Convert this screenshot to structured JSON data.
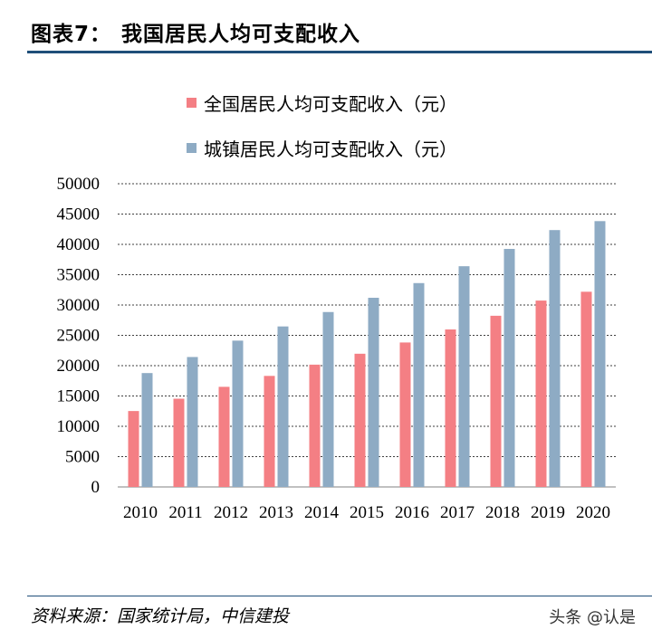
{
  "header": {
    "figure_number": "图表7：",
    "title": "我国居民人均可支配收入"
  },
  "chart_data": {
    "type": "bar",
    "title": "",
    "categories": [
      "2010",
      "2011",
      "2012",
      "2013",
      "2014",
      "2015",
      "2016",
      "2017",
      "2018",
      "2019",
      "2020"
    ],
    "series": [
      {
        "name": "全国居民人均可支配收入（元）",
        "color": "#f47f84",
        "values": [
          12520,
          14550,
          16510,
          18311,
          20167,
          21966,
          23821,
          25974,
          28228,
          30733,
          32189
        ]
      },
      {
        "name": "城镇居民人均可支配收入（元）",
        "color": "#8eabc4",
        "values": [
          18779,
          21427,
          24127,
          26467,
          28844,
          31195,
          33616,
          36396,
          39251,
          42359,
          43834
        ]
      }
    ],
    "y_ticks": [
      "0",
      "5000",
      "10000",
      "15000",
      "20000",
      "25000",
      "30000",
      "35000",
      "40000",
      "45000",
      "50000"
    ],
    "ylim": [
      0,
      50000
    ],
    "grid": true,
    "legend_position": "top-left",
    "xlabel": "",
    "ylabel": ""
  },
  "footer": {
    "source": "资料来源：国家统计局，中信建投",
    "watermark": "头条 @认是"
  }
}
